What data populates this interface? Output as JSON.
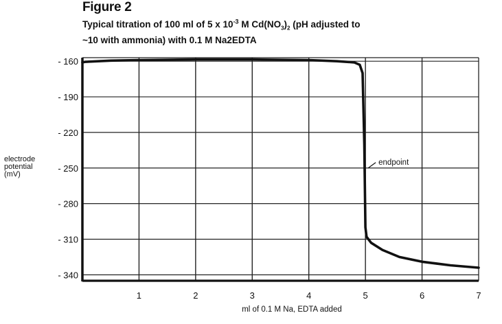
{
  "figure_label": "Figure 2",
  "caption_line1": "Typical titration of 100 ml of 5 x 10",
  "caption_sup": "-3",
  "caption_line1_rest": " M Cd(NO",
  "caption_sub": "3",
  "caption_line1_end": ")",
  "caption_sub2": "2",
  "caption_line1_tail": " (pH adjusted to",
  "caption_line2": "~10 with ammonia) with 0.1 M Na2EDTA",
  "ylabel_lines": [
    "electrode",
    "potential",
    "(mV)"
  ],
  "chart_data": {
    "type": "line",
    "title": "Figure 2",
    "xlabel": "ml of 0.1 M Na, EDTA added",
    "ylabel": "electrode potential (mV)",
    "xlim": [
      0,
      7
    ],
    "ylim": [
      -345,
      -157
    ],
    "x_ticks": [
      1,
      2,
      3,
      4,
      5,
      6,
      7
    ],
    "y_ticks": [
      -160,
      -190,
      -220,
      -250,
      -280,
      -310,
      -340
    ],
    "y_tick_labels": [
      "- 160",
      "- 190",
      "- 220",
      "- 250",
      "- 280",
      "- 310",
      "- 340"
    ],
    "grid": true,
    "series": [
      {
        "x": [
          0,
          0.05,
          0.5,
          1,
          2,
          3,
          4,
          4.5,
          4.8,
          4.9,
          4.95,
          4.98,
          5.0,
          5.02,
          5.1,
          5.3,
          5.6,
          6.0,
          6.5,
          7.0
        ],
        "y": [
          -161,
          -160.5,
          -159.5,
          -159,
          -158.5,
          -158.5,
          -159,
          -160,
          -161,
          -163,
          -170,
          -230,
          -300,
          -308,
          -313,
          -319,
          -325,
          -329,
          -332,
          -334
        ]
      }
    ],
    "annotations": [
      {
        "text": "endpoint",
        "x": 5.0,
        "y": -250
      }
    ]
  }
}
